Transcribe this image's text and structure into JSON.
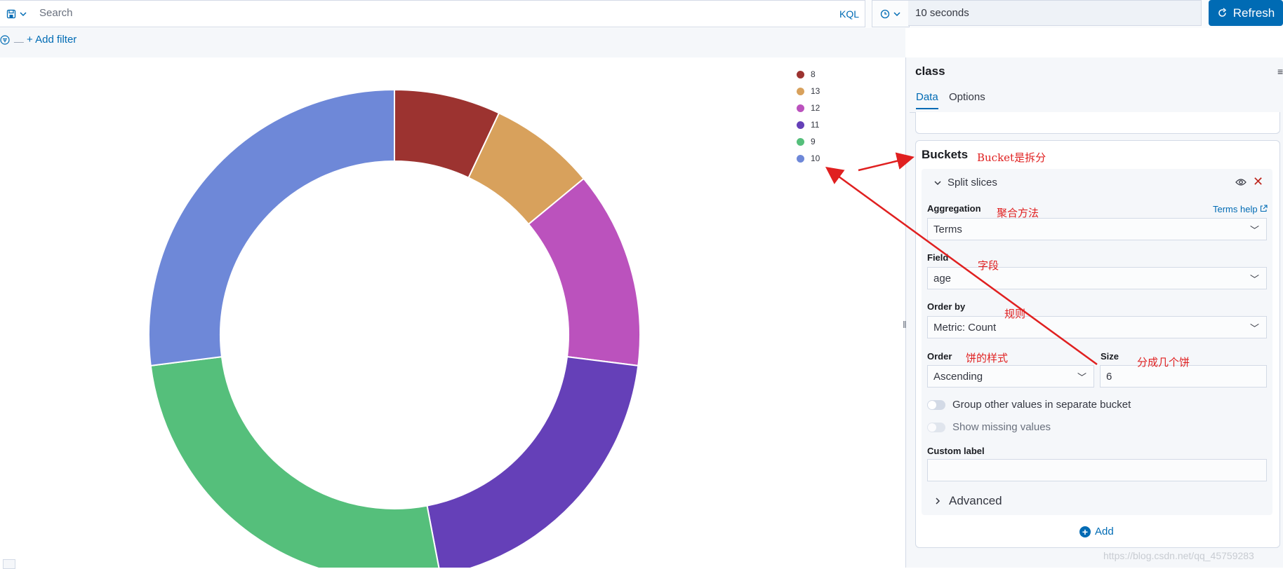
{
  "query_bar": {
    "search_placeholder": "Search",
    "kql_label": "KQL",
    "interval_value": "10 seconds",
    "refresh_label": "Refresh"
  },
  "filter_bar": {
    "add_filter_label": "+ Add filter"
  },
  "legend": [
    {
      "label": "8",
      "color": "#9c3330"
    },
    {
      "label": "13",
      "color": "#d8a15c"
    },
    {
      "label": "12",
      "color": "#bb52bd"
    },
    {
      "label": "11",
      "color": "#6540b8"
    },
    {
      "label": "9",
      "color": "#55bf7b"
    },
    {
      "label": "10",
      "color": "#6e88d8"
    }
  ],
  "chart_data": {
    "type": "pie",
    "donut": true,
    "categories": [
      "8",
      "13",
      "12",
      "11",
      "9",
      "10"
    ],
    "values": [
      7,
      7,
      13,
      20,
      26,
      27
    ],
    "colors": [
      "#9c3330",
      "#d8a15c",
      "#bb52bd",
      "#6540b8",
      "#55bf7b",
      "#6e88d8"
    ]
  },
  "panel": {
    "title": "class",
    "tabs": [
      "Data",
      "Options"
    ],
    "buckets_title": "Buckets",
    "split_title": "Split slices",
    "aggregation_label": "Aggregation",
    "terms_help": "Terms help",
    "aggregation_value": "Terms",
    "field_label": "Field",
    "field_value": "age",
    "orderby_label": "Order by",
    "orderby_value": "Metric: Count",
    "order_label": "Order",
    "order_value": "Ascending",
    "size_label": "Size",
    "size_value": "6",
    "group_other_label": "Group other values in separate bucket",
    "show_missing_label": "Show missing values",
    "custom_label_label": "Custom label",
    "advanced_label": "Advanced",
    "add_label": "Add"
  },
  "annotations": {
    "bucket": "Bucket是拆分",
    "aggregation": "聚合方法",
    "field": "字段",
    "rule": "规则",
    "order": "饼的样式",
    "size": "分成几个饼"
  },
  "watermark": "https://blog.csdn.net/qq_45759283"
}
